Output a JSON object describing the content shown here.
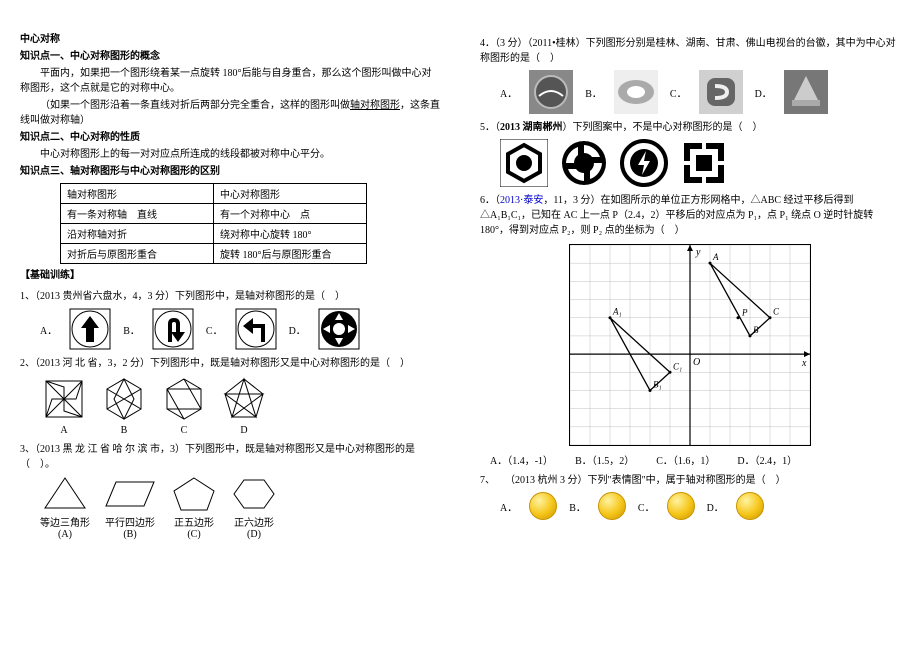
{
  "left": {
    "h_title": "中心对称",
    "k1_title": "知识点一、中心对称图形的概念",
    "k1_p1": "平面内，如果把一个图形绕着某一点旋转 180°后能与自身重合，那么这个图形叫做中心对称图形，这个点就是它的对称中心。",
    "k1_p2_a": "（如果一个图形沿着一条直线对折后两部分完全重合，这样的图形叫做",
    "k1_p2_u": "轴对称图形",
    "k1_p2_b": "，这条直线叫做对称轴）",
    "k2_title": "知识点二、中心对称的性质",
    "k2_p1": "中心对称图形上的每一对对应点所连成的线段都被对称中心平分。",
    "k3_title": "知识点三、轴对称图形与中心对称图形的区别",
    "tbl": [
      [
        "轴对称图形",
        "中心对称图形"
      ],
      [
        "有一条对称轴 直线",
        "有一个对称中心 点"
      ],
      [
        "沿对称轴对折",
        "绕对称中心旋转 180°"
      ],
      [
        "对折后与原图形重合",
        "旋转 180°后与原图形重合"
      ]
    ],
    "train_title": "【基础训练】",
    "q1": "1、（2013 贵州省六盘水，4，3 分）下列图形中，是轴对称图形的是（ ）",
    "q1_opts": [
      "A．",
      "B．",
      "C．",
      "D．"
    ],
    "q2": "2、（2013 河 北 省，3，2 分）下列图形中，既是轴对称图形又是中心对称图形的是（ ）",
    "q2_labels": [
      "A",
      "B",
      "C",
      "D"
    ],
    "q3": "3、（2013 黑 龙 江 省 哈 尔 滨 市，3）下列图形中，既是轴对称图形又是中心对称图形的是（ ）。",
    "q3_labels": [
      "等边三角形\n(A)",
      "平行四边形\n(B)",
      "正五边形\n(C)",
      "正六边形\n(D)"
    ]
  },
  "right": {
    "q4": "4．（3 分）（2011•桂林）下列图形分别是桂林、湖南、甘肃、佛山电视台的台徽，其中为中心对称图形的是（ ）",
    "q4_opts": [
      "A．",
      "B．",
      "C．",
      "D．"
    ],
    "q5a": "5．（",
    "q5b": "2013 湖南郴州",
    "q5c": "）下列图案中，不是中心对称图形的是（ ）",
    "q6_a": "6．（",
    "q6_b": "2013·泰安",
    "q6_c": "，11，3 分）在如图所示的单位正方形网格中，△ABC 经过平移后得到 △A₁B₁C₁，已知在 AC 上一点 P（2.4，2）平移后的对应点为 P₁，点 P₁ 绕点 O 逆时针旋转 180°，得到对应点 P₂，则 P₂ 点的坐标为（ ）",
    "q6_opts": [
      "A．（1.4，-1）",
      "B．（1.5，2）",
      "C．（1.6，1）",
      "D．（2.4，1）"
    ],
    "q7": "7、 （2013 杭州 3 分）下列\"表情图\"中，属于轴对称图形的是（ ）",
    "q7_opts": [
      "A．",
      "B．",
      "C．",
      "D．"
    ],
    "chart": {
      "axis_color": "#000000",
      "grid_color": "#c0c0c0",
      "xrange": [
        -6,
        6
      ],
      "yrange": [
        -5,
        6
      ],
      "triangles": [
        {
          "label": [
            "A",
            "B",
            "C"
          ],
          "pts": [
            [
              1,
              5
            ],
            [
              3,
              1
            ],
            [
              4,
              2
            ]
          ]
        },
        {
          "label": [
            "A₁",
            "B₁",
            "C₁"
          ],
          "pts": [
            [
              -4,
              2
            ],
            [
              -2,
              -2
            ],
            [
              -1,
              -1
            ]
          ]
        }
      ],
      "origin_label": "O",
      "axis_labels": {
        "x": "x",
        "y": "y"
      }
    }
  }
}
